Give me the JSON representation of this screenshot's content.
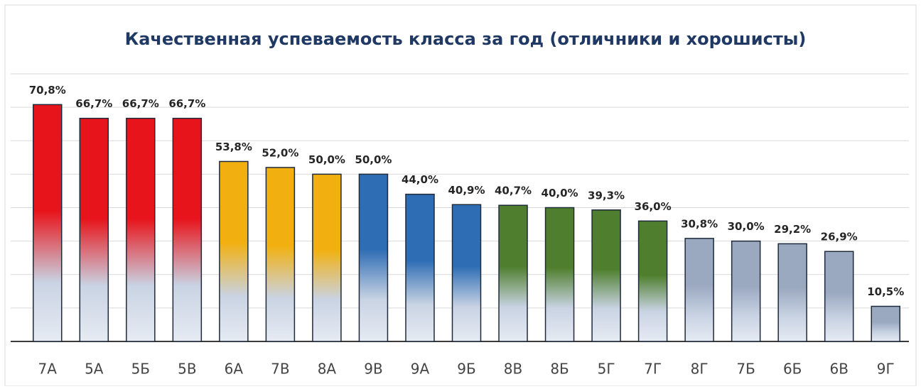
{
  "chart_data": {
    "type": "bar",
    "title": "Качественная успеваемость класса за год (отличники и хорошисты)",
    "categories": [
      "7А",
      "5А",
      "5Б",
      "5В",
      "6А",
      "7В",
      "8А",
      "9В",
      "9А",
      "9Б",
      "8В",
      "8Б",
      "5Г",
      "7Г",
      "8Г",
      "7Б",
      "6Б",
      "6В",
      "9Г"
    ],
    "values": [
      70.8,
      66.7,
      66.7,
      66.7,
      53.8,
      52.0,
      50.0,
      50.0,
      44.0,
      40.9,
      40.7,
      40.0,
      39.3,
      36.0,
      30.8,
      30.0,
      29.2,
      26.9,
      10.5
    ],
    "value_labels": [
      "70,8%",
      "66,7%",
      "66,7%",
      "66,7%",
      "53,8%",
      "52,0%",
      "50,0%",
      "50,0%",
      "44,0%",
      "40,9%",
      "40,7%",
      "40,0%",
      "39,3%",
      "36,0%",
      "30,8%",
      "30,0%",
      "29,2%",
      "26,9%",
      "10,5%"
    ],
    "colors": [
      "#e8141b",
      "#e8141b",
      "#e8141b",
      "#e8141b",
      "#f2b010",
      "#f2b010",
      "#f2b010",
      "#2e6db4",
      "#2e6db4",
      "#2e6db4",
      "#4f7f2e",
      "#4f7f2e",
      "#4f7f2e",
      "#4f7f2e",
      "#9aa8c0",
      "#9aa8c0",
      "#9aa8c0",
      "#9aa8c0",
      "#9aa8c0"
    ],
    "ylim": [
      0,
      80
    ],
    "yticks": [
      0,
      10,
      20,
      30,
      40,
      50,
      60,
      70,
      80
    ],
    "grid": true
  }
}
